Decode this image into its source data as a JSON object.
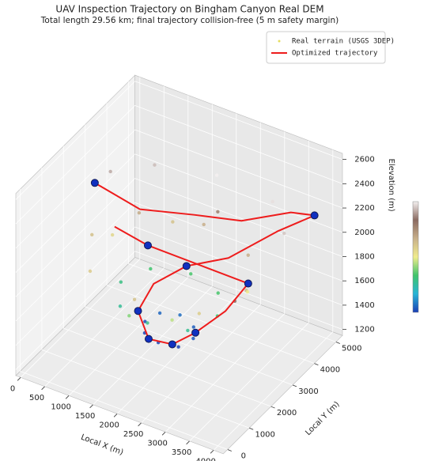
{
  "chart_data": {
    "type": "scatter3d",
    "title": "UAV Inspection Trajectory on Bingham Canyon Real DEM",
    "subtitle": "Total length 29.56 km; final trajectory collision-free (5 m safety margin)",
    "xlabel": "Local X (m)",
    "ylabel": "Local Y (m)",
    "zlabel": "Elevation (m)",
    "xlim": [
      -100,
      4200
    ],
    "ylim": [
      -200,
      5300
    ],
    "zlim": [
      1150,
      2650
    ],
    "xticks": [
      0,
      500,
      1000,
      1500,
      2000,
      2500,
      3000,
      3500,
      4000
    ],
    "yticks": [
      0,
      1000,
      2000,
      3000,
      4000,
      5000
    ],
    "zticks": [
      1200,
      1400,
      1600,
      1800,
      2000,
      2200,
      2400,
      2600
    ],
    "colormap": [
      "#1a3fb5",
      "#27b4d6",
      "#3fc46a",
      "#f0ec8c",
      "#c8b08a",
      "#8a6a60",
      "#f4f0f0"
    ],
    "legend": "upper right",
    "series": [
      {
        "name": "Real terrain (USGS 3DEP)",
        "kind": "points",
        "color": "#e6dd60",
        "x": [
          2000,
          2500,
          2000,
          1500,
          2350,
          1650,
          2350,
          1650,
          2000,
          3000,
          2000,
          1000,
          2700,
          1300,
          2700,
          1300,
          2000,
          3600,
          2000,
          400,
          3130,
          870,
          3130,
          870,
          3800,
          3200,
          2000,
          800,
          200,
          3900,
          2600,
          1400,
          2200,
          1800,
          3400,
          600
        ],
        "y": [
          1700,
          2200,
          2700,
          2200,
          1850,
          2550,
          2550,
          1850,
          1200,
          2200,
          3200,
          2200,
          1500,
          2900,
          2900,
          1500,
          600,
          2200,
          3800,
          2200,
          1070,
          3330,
          3330,
          1070,
          3500,
          4300,
          4400,
          4200,
          3500,
          1000,
          1000,
          3700,
          4000,
          800,
          2700,
          2700
        ],
        "z": [
          1400,
          1420,
          1450,
          1410,
          1390,
          1440,
          1430,
          1400,
          1650,
          1680,
          1700,
          1660,
          1640,
          1690,
          1700,
          1630,
          1950,
          1980,
          2000,
          1960,
          1920,
          2010,
          2000,
          1930,
          2250,
          2280,
          2300,
          2240,
          2220,
          2150,
          1800,
          1950,
          2100,
          1750,
          1850,
          1900
        ]
      },
      {
        "name": "Optimized trajectory",
        "kind": "line",
        "color": "#ee1c1c",
        "x": [
          100,
          900,
          1800,
          2600,
          3400,
          3800,
          3300,
          2600,
          2000,
          1500,
          1400,
          1800,
          2200,
          2500,
          2900,
          3100,
          2300,
          1200,
          600
        ],
        "y": [
          3000,
          3300,
          3800,
          4200,
          4700,
          4900,
          4300,
          3600,
          3000,
          2600,
          2100,
          1700,
          1900,
          2300,
          2800,
          3400,
          3200,
          3000,
          2800
        ],
        "z": [
          2200,
          2050,
          2050,
          2050,
          2150,
          2150,
          2050,
          1850,
          1800,
          1650,
          1500,
          1400,
          1380,
          1450,
          1600,
          1750,
          1800,
          1850,
          1950
        ]
      },
      {
        "kind": "markers",
        "color": "#1030c0",
        "x": [
          100,
          3800,
          2000,
          1400,
          1800,
          2200,
          2500,
          3100,
          1200
        ],
        "y": [
          3000,
          4900,
          3000,
          2100,
          1700,
          1900,
          2300,
          3400,
          3000
        ],
        "z": [
          2200,
          2150,
          1800,
          1500,
          1400,
          1380,
          1450,
          1750,
          1850
        ]
      }
    ]
  }
}
